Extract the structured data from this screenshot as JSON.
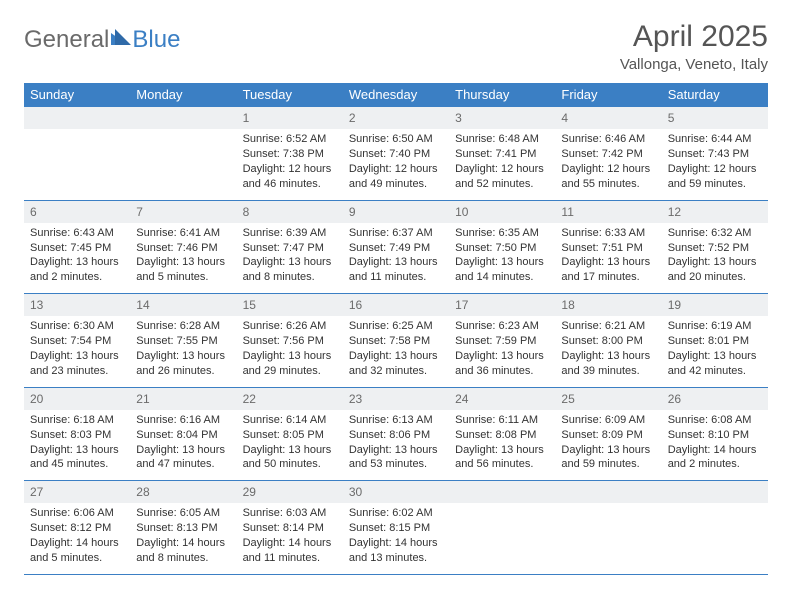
{
  "logo": {
    "part1": "General",
    "part2": "Blue"
  },
  "title": "April 2025",
  "location": "Vallonga, Veneto, Italy",
  "day_headers": [
    "Sunday",
    "Monday",
    "Tuesday",
    "Wednesday",
    "Thursday",
    "Friday",
    "Saturday"
  ],
  "colors": {
    "header_bg": "#3b7fc4",
    "header_fg": "#ffffff",
    "daynum_bg": "#eef0f2",
    "daynum_fg": "#6b6b6b",
    "rule": "#3b7fc4",
    "text": "#333333",
    "title_fg": "#555555"
  },
  "weeks": [
    [
      null,
      null,
      {
        "d": "1",
        "sr": "6:52 AM",
        "ss": "7:38 PM",
        "dl": "12 hours and 46 minutes."
      },
      {
        "d": "2",
        "sr": "6:50 AM",
        "ss": "7:40 PM",
        "dl": "12 hours and 49 minutes."
      },
      {
        "d": "3",
        "sr": "6:48 AM",
        "ss": "7:41 PM",
        "dl": "12 hours and 52 minutes."
      },
      {
        "d": "4",
        "sr": "6:46 AM",
        "ss": "7:42 PM",
        "dl": "12 hours and 55 minutes."
      },
      {
        "d": "5",
        "sr": "6:44 AM",
        "ss": "7:43 PM",
        "dl": "12 hours and 59 minutes."
      }
    ],
    [
      {
        "d": "6",
        "sr": "6:43 AM",
        "ss": "7:45 PM",
        "dl": "13 hours and 2 minutes."
      },
      {
        "d": "7",
        "sr": "6:41 AM",
        "ss": "7:46 PM",
        "dl": "13 hours and 5 minutes."
      },
      {
        "d": "8",
        "sr": "6:39 AM",
        "ss": "7:47 PM",
        "dl": "13 hours and 8 minutes."
      },
      {
        "d": "9",
        "sr": "6:37 AM",
        "ss": "7:49 PM",
        "dl": "13 hours and 11 minutes."
      },
      {
        "d": "10",
        "sr": "6:35 AM",
        "ss": "7:50 PM",
        "dl": "13 hours and 14 minutes."
      },
      {
        "d": "11",
        "sr": "6:33 AM",
        "ss": "7:51 PM",
        "dl": "13 hours and 17 minutes."
      },
      {
        "d": "12",
        "sr": "6:32 AM",
        "ss": "7:52 PM",
        "dl": "13 hours and 20 minutes."
      }
    ],
    [
      {
        "d": "13",
        "sr": "6:30 AM",
        "ss": "7:54 PM",
        "dl": "13 hours and 23 minutes."
      },
      {
        "d": "14",
        "sr": "6:28 AM",
        "ss": "7:55 PM",
        "dl": "13 hours and 26 minutes."
      },
      {
        "d": "15",
        "sr": "6:26 AM",
        "ss": "7:56 PM",
        "dl": "13 hours and 29 minutes."
      },
      {
        "d": "16",
        "sr": "6:25 AM",
        "ss": "7:58 PM",
        "dl": "13 hours and 32 minutes."
      },
      {
        "d": "17",
        "sr": "6:23 AM",
        "ss": "7:59 PM",
        "dl": "13 hours and 36 minutes."
      },
      {
        "d": "18",
        "sr": "6:21 AM",
        "ss": "8:00 PM",
        "dl": "13 hours and 39 minutes."
      },
      {
        "d": "19",
        "sr": "6:19 AM",
        "ss": "8:01 PM",
        "dl": "13 hours and 42 minutes."
      }
    ],
    [
      {
        "d": "20",
        "sr": "6:18 AM",
        "ss": "8:03 PM",
        "dl": "13 hours and 45 minutes."
      },
      {
        "d": "21",
        "sr": "6:16 AM",
        "ss": "8:04 PM",
        "dl": "13 hours and 47 minutes."
      },
      {
        "d": "22",
        "sr": "6:14 AM",
        "ss": "8:05 PM",
        "dl": "13 hours and 50 minutes."
      },
      {
        "d": "23",
        "sr": "6:13 AM",
        "ss": "8:06 PM",
        "dl": "13 hours and 53 minutes."
      },
      {
        "d": "24",
        "sr": "6:11 AM",
        "ss": "8:08 PM",
        "dl": "13 hours and 56 minutes."
      },
      {
        "d": "25",
        "sr": "6:09 AM",
        "ss": "8:09 PM",
        "dl": "13 hours and 59 minutes."
      },
      {
        "d": "26",
        "sr": "6:08 AM",
        "ss": "8:10 PM",
        "dl": "14 hours and 2 minutes."
      }
    ],
    [
      {
        "d": "27",
        "sr": "6:06 AM",
        "ss": "8:12 PM",
        "dl": "14 hours and 5 minutes."
      },
      {
        "d": "28",
        "sr": "6:05 AM",
        "ss": "8:13 PM",
        "dl": "14 hours and 8 minutes."
      },
      {
        "d": "29",
        "sr": "6:03 AM",
        "ss": "8:14 PM",
        "dl": "14 hours and 11 minutes."
      },
      {
        "d": "30",
        "sr": "6:02 AM",
        "ss": "8:15 PM",
        "dl": "14 hours and 13 minutes."
      },
      null,
      null,
      null
    ]
  ],
  "labels": {
    "sunrise": "Sunrise: ",
    "sunset": "Sunset: ",
    "daylight": "Daylight: "
  }
}
